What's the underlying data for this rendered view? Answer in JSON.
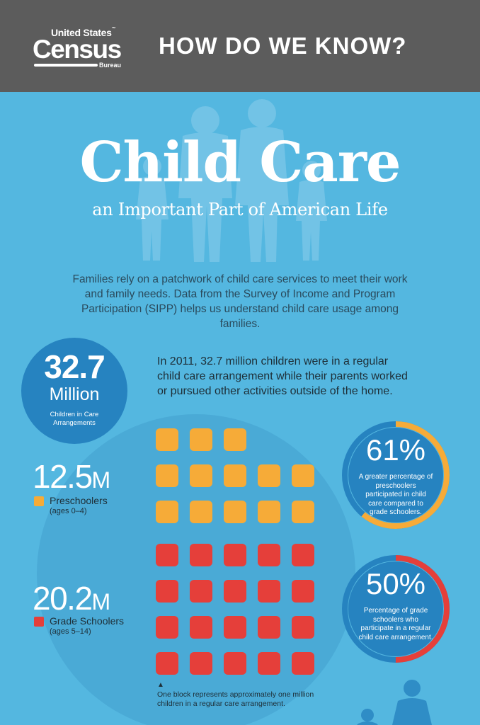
{
  "header": {
    "logo": {
      "line1": "United States",
      "trademark": "™",
      "line2": "Census",
      "line3": "Bureau"
    },
    "title": "HOW DO WE KNOW?"
  },
  "hero": {
    "title": "Child Care",
    "subtitle": "an Important Part of American Life"
  },
  "intro": "Families rely on a patchwork of child care services to meet their work and family needs. Data from the Survey of Income and Program Participation (SIPP) helps us understand child care usage among families.",
  "total": {
    "number": "32.7",
    "unit": "Million",
    "caption": "Children in Care Arrangements"
  },
  "lead": "In 2011, 32.7 million children were in a regular child care arrangement while their parents worked or pursued other activities outside of the home.",
  "groups": {
    "preschoolers": {
      "value": "12.5",
      "unit": "M",
      "label": "Preschoolers",
      "ages": "(ages 0–4)",
      "blocks": 13,
      "color": "#f6ab38"
    },
    "grade": {
      "value": "20.2",
      "unit": "M",
      "label": "Grade Schoolers",
      "ages": "(ages 5–14)",
      "blocks": 20,
      "color": "#e53f3a"
    }
  },
  "percentages": {
    "pre": {
      "value": "61%",
      "fraction": 0.61,
      "desc": "A greater percentage of preschoolers participated in child care compared to grade schoolers.",
      "ring_color": "#f6ab38"
    },
    "grade": {
      "value": "50%",
      "fraction": 0.5,
      "desc": "Percentage of grade schoolers who participate in a regular child care arrangement.",
      "ring_color": "#e53f3a"
    }
  },
  "note": {
    "arrow": "▲",
    "text": "One block represents approximately one million children in a regular care arrangement."
  }
}
